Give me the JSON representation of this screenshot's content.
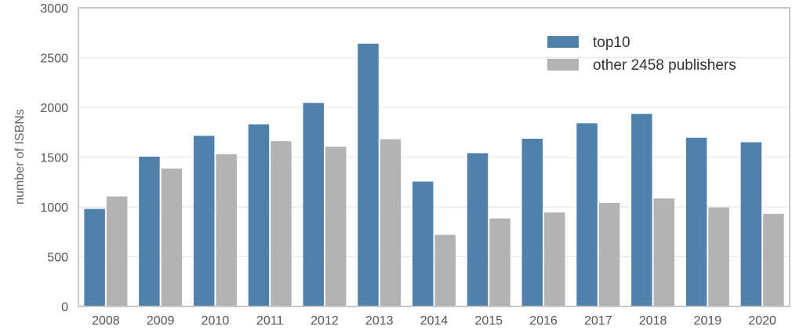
{
  "chart_data": {
    "type": "bar",
    "title": "",
    "xlabel": "",
    "ylabel": "number of ISBNs",
    "categories": [
      "2008",
      "2009",
      "2010",
      "2011",
      "2012",
      "2013",
      "2014",
      "2015",
      "2016",
      "2017",
      "2018",
      "2019",
      "2020"
    ],
    "series": [
      {
        "name": "top10",
        "color": "#4f81ab",
        "values": [
          980,
          1505,
          1715,
          1830,
          2045,
          2640,
          1255,
          1540,
          1685,
          1840,
          1935,
          1695,
          1650
        ]
      },
      {
        "name": "other 2458 publishers",
        "color": "#b3b3b3",
        "values": [
          1105,
          1385,
          1530,
          1660,
          1605,
          1680,
          720,
          885,
          945,
          1040,
          1085,
          995,
          930
        ]
      }
    ],
    "ylim": [
      0,
      3000
    ],
    "yticks": [
      0,
      500,
      1000,
      1500,
      2000,
      2500,
      3000
    ],
    "grid": true,
    "legend_position": "top-right"
  }
}
